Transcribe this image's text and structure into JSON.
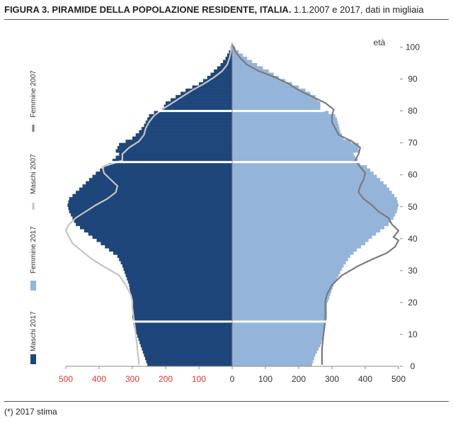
{
  "title_bold": "FIGURA 3. PIRAMIDE DELLA POPOLAZIONE RESIDENTE, ITALIA.",
  "title_rest": " 1.1.2007 e 2017, dati in migliaia",
  "footnote": "(*) 2017 stima",
  "colors": {
    "maschi2017": "#1f467b",
    "femmine2017": "#95b4d9",
    "maschi2007": "#c4c4c4",
    "femmine2007": "#7a7a7a",
    "left_tick_labels": "#e23434",
    "right_tick_labels": "#333333"
  },
  "chart_data": {
    "type": "bar",
    "orientation": "horizontal-pyramid",
    "ylabel": "età",
    "y_ticks": [
      0,
      10,
      20,
      30,
      40,
      50,
      60,
      70,
      80,
      90,
      100
    ],
    "x_ticks_left": [
      "500",
      "400",
      "300",
      "200",
      "100"
    ],
    "x_ticks_right": [
      "0",
      "100",
      "200",
      "300",
      "400",
      "500"
    ],
    "xlim": [
      -500,
      500
    ],
    "ylim": [
      0,
      100
    ],
    "legend": [
      {
        "key": "femmine2007",
        "label": "Femmine 2007",
        "kind": "line"
      },
      {
        "key": "maschi2007",
        "label": "Maschi 2007",
        "kind": "line"
      },
      {
        "key": "femmine2017",
        "label": "Femmine 2017",
        "kind": "bar"
      },
      {
        "key": "maschi2017",
        "label": "Maschi 2017",
        "kind": "bar"
      }
    ],
    "series_bars": {
      "maschi2017_anchors": [
        [
          0,
          255
        ],
        [
          3,
          265
        ],
        [
          6,
          275
        ],
        [
          9,
          285
        ],
        [
          12,
          295
        ],
        [
          15,
          300
        ],
        [
          19,
          300
        ],
        [
          22,
          305
        ],
        [
          25,
          310
        ],
        [
          28,
          320
        ],
        [
          31,
          330
        ],
        [
          34,
          345
        ],
        [
          36,
          370
        ],
        [
          38,
          395
        ],
        [
          40,
          420
        ],
        [
          42,
          445
        ],
        [
          44,
          470
        ],
        [
          46,
          480
        ],
        [
          48,
          490
        ],
        [
          50,
          495
        ],
        [
          52,
          490
        ],
        [
          54,
          470
        ],
        [
          56,
          450
        ],
        [
          58,
          430
        ],
        [
          60,
          410
        ],
        [
          62,
          385
        ],
        [
          63,
          370
        ],
        [
          65,
          350
        ],
        [
          66,
          340
        ],
        [
          67,
          350
        ],
        [
          69,
          340
        ],
        [
          71,
          300
        ],
        [
          73,
          280
        ],
        [
          75,
          265
        ],
        [
          77,
          255
        ],
        [
          78,
          250
        ],
        [
          79,
          235
        ],
        [
          80,
          210
        ],
        [
          81,
          205
        ],
        [
          82,
          200
        ],
        [
          84,
          170
        ],
        [
          86,
          140
        ],
        [
          88,
          100
        ],
        [
          90,
          75
        ],
        [
          92,
          55
        ],
        [
          94,
          35
        ],
        [
          96,
          20
        ],
        [
          98,
          10
        ],
        [
          99,
          5
        ],
        [
          100,
          2
        ]
      ],
      "femmine2017_anchors": [
        [
          0,
          240
        ],
        [
          3,
          250
        ],
        [
          6,
          265
        ],
        [
          9,
          275
        ],
        [
          12,
          280
        ],
        [
          15,
          285
        ],
        [
          19,
          285
        ],
        [
          22,
          295
        ],
        [
          25,
          305
        ],
        [
          28,
          320
        ],
        [
          31,
          335
        ],
        [
          34,
          355
        ],
        [
          36,
          375
        ],
        [
          38,
          400
        ],
        [
          40,
          420
        ],
        [
          42,
          445
        ],
        [
          44,
          470
        ],
        [
          46,
          485
        ],
        [
          48,
          495
        ],
        [
          50,
          500
        ],
        [
          52,
          495
        ],
        [
          54,
          480
        ],
        [
          56,
          465
        ],
        [
          58,
          445
        ],
        [
          60,
          425
        ],
        [
          62,
          405
        ],
        [
          63,
          385
        ],
        [
          65,
          370
        ],
        [
          66,
          365
        ],
        [
          67,
          380
        ],
        [
          69,
          380
        ],
        [
          71,
          335
        ],
        [
          73,
          325
        ],
        [
          75,
          320
        ],
        [
          77,
          315
        ],
        [
          78,
          310
        ],
        [
          79,
          290
        ],
        [
          80,
          265
        ],
        [
          81,
          265
        ],
        [
          82,
          265
        ],
        [
          84,
          250
        ],
        [
          86,
          220
        ],
        [
          88,
          180
        ],
        [
          90,
          140
        ],
        [
          92,
          110
        ],
        [
          94,
          75
        ],
        [
          96,
          45
        ],
        [
          98,
          20
        ],
        [
          99,
          10
        ],
        [
          100,
          3
        ]
      ]
    },
    "series_lines": {
      "maschi2007": [
        [
          0,
          280
        ],
        [
          5,
          285
        ],
        [
          10,
          290
        ],
        [
          14,
          295
        ],
        [
          18,
          300
        ],
        [
          20,
          300
        ],
        [
          22,
          305
        ],
        [
          25,
          320
        ],
        [
          28,
          340
        ],
        [
          31,
          390
        ],
        [
          33,
          420
        ],
        [
          35,
          445
        ],
        [
          38,
          480
        ],
        [
          40,
          490
        ],
        [
          42,
          500
        ],
        [
          44,
          490
        ],
        [
          46,
          470
        ],
        [
          48,
          440
        ],
        [
          50,
          410
        ],
        [
          52,
          375
        ],
        [
          54,
          350
        ],
        [
          56,
          345
        ],
        [
          58,
          365
        ],
        [
          60,
          385
        ],
        [
          62,
          390
        ],
        [
          64,
          330
        ],
        [
          66,
          330
        ],
        [
          68,
          310
        ],
        [
          70,
          280
        ],
        [
          72,
          265
        ],
        [
          74,
          260
        ],
        [
          76,
          250
        ],
        [
          78,
          235
        ],
        [
          80,
          210
        ],
        [
          82,
          180
        ],
        [
          84,
          150
        ],
        [
          86,
          120
        ],
        [
          88,
          85
        ],
        [
          90,
          55
        ],
        [
          92,
          30
        ],
        [
          94,
          15
        ],
        [
          96,
          8
        ],
        [
          98,
          4
        ],
        [
          100,
          1
        ]
      ],
      "femmine2007": [
        [
          0,
          270
        ],
        [
          5,
          270
        ],
        [
          10,
          275
        ],
        [
          14,
          280
        ],
        [
          18,
          280
        ],
        [
          20,
          280
        ],
        [
          22,
          285
        ],
        [
          25,
          300
        ],
        [
          28,
          330
        ],
        [
          31,
          380
        ],
        [
          33,
          420
        ],
        [
          35,
          465
        ],
        [
          37,
          490
        ],
        [
          38,
          495
        ],
        [
          39,
          500
        ],
        [
          40,
          485
        ],
        [
          42,
          500
        ],
        [
          44,
          480
        ],
        [
          46,
          470
        ],
        [
          48,
          440
        ],
        [
          50,
          420
        ],
        [
          52,
          395
        ],
        [
          54,
          380
        ],
        [
          56,
          385
        ],
        [
          58,
          395
        ],
        [
          60,
          400
        ],
        [
          62,
          385
        ],
        [
          64,
          370
        ],
        [
          66,
          380
        ],
        [
          68,
          385
        ],
        [
          70,
          360
        ],
        [
          72,
          320
        ],
        [
          74,
          310
        ],
        [
          76,
          300
        ],
        [
          78,
          300
        ],
        [
          80,
          305
        ],
        [
          82,
          280
        ],
        [
          84,
          240
        ],
        [
          86,
          200
        ],
        [
          88,
          170
        ],
        [
          90,
          130
        ],
        [
          92,
          80
        ],
        [
          94,
          45
        ],
        [
          96,
          25
        ],
        [
          98,
          10
        ],
        [
          100,
          3
        ]
      ]
    },
    "separator_ages": [
      14,
      64,
      80
    ]
  }
}
